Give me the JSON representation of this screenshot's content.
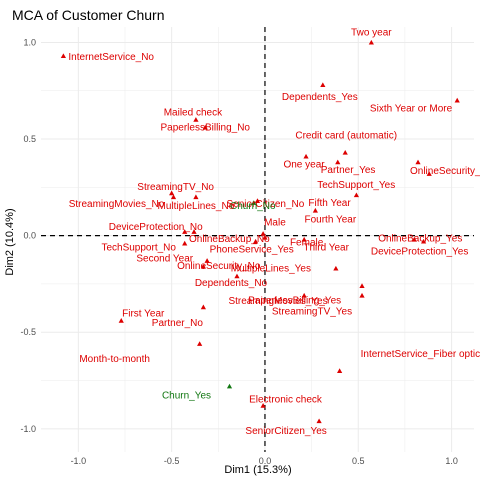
{
  "chart_data": {
    "type": "scatter",
    "title": "MCA of Customer Churn",
    "xlabel": "Dim1 (15.3%)",
    "ylabel": "Dim2 (10.4%)",
    "xlim": [
      -1.2,
      1.12
    ],
    "ylim": [
      -1.12,
      1.08
    ],
    "xticks": [
      -1.0,
      -0.5,
      0.0,
      0.5,
      1.0
    ],
    "yticks": [
      -1.0,
      -0.5,
      0.0,
      0.5,
      1.0
    ],
    "xtick_labels": [
      "-1.0",
      "-0.5",
      "0.0",
      "0.5",
      "1.0"
    ],
    "ytick_labels": [
      "-1.0",
      "-0.5",
      "0.0",
      "0.5",
      "1.0"
    ],
    "grid": true,
    "reference_lines": {
      "x": 0,
      "y": 0,
      "style": "dashed"
    },
    "colors": {
      "variable": "#dd0000",
      "supplementary": "#117711"
    },
    "points": [
      {
        "label": "Two year",
        "x": 0.57,
        "y": 1.0,
        "group": "variable"
      },
      {
        "label": "InternetService_No",
        "x": -1.08,
        "y": 0.93,
        "group": "variable"
      },
      {
        "label": "Dependents_Yes",
        "x": 0.31,
        "y": 0.78,
        "group": "variable"
      },
      {
        "label": "Sixth Year or More",
        "x": 1.03,
        "y": 0.7,
        "group": "variable"
      },
      {
        "label": "Mailed check",
        "x": -0.37,
        "y": 0.6,
        "group": "variable"
      },
      {
        "label": "PaperlessBilling_No",
        "x": -0.32,
        "y": 0.56,
        "group": "variable"
      },
      {
        "label": "Credit card (automatic)",
        "x": 0.43,
        "y": 0.43,
        "group": "variable"
      },
      {
        "label": "OnlineSecurity_Yes",
        "x": 0.82,
        "y": 0.38,
        "group": "variable"
      },
      {
        "label": "One year",
        "x": 0.22,
        "y": 0.41,
        "group": "variable"
      },
      {
        "label": "Partner_Yes",
        "x": 0.39,
        "y": 0.38,
        "group": "variable"
      },
      {
        "label": "Fifth Year",
        "x": 0.49,
        "y": 0.21,
        "group": "variable"
      },
      {
        "label": "TechSupport_Yes",
        "x": 0.88,
        "y": 0.32,
        "group": "variable"
      },
      {
        "label": "StreamingTV_No",
        "x": -0.5,
        "y": 0.22,
        "group": "variable"
      },
      {
        "label": "SeniorCitizen_No",
        "x": -0.04,
        "y": 0.18,
        "group": "variable"
      },
      {
        "label": "Churn_No",
        "x": -0.06,
        "y": 0.17,
        "group": "supplementary"
      },
      {
        "label": "StreamingMovies_No",
        "x": -0.49,
        "y": 0.2,
        "group": "variable"
      },
      {
        "label": "MultipleLines_No",
        "x": -0.37,
        "y": 0.2,
        "group": "variable"
      },
      {
        "label": "Fourth Year",
        "x": 0.27,
        "y": 0.13,
        "group": "variable"
      },
      {
        "label": "DeviceProtection_No",
        "x": -0.43,
        "y": 0.02,
        "group": "variable"
      },
      {
        "label": "OnlineBackup_No",
        "x": -0.38,
        "y": 0.02,
        "group": "variable"
      },
      {
        "label": "Male",
        "x": -0.01,
        "y": 0.01,
        "group": "variable"
      },
      {
        "label": "Female",
        "x": 0.0,
        "y": -0.01,
        "group": "variable"
      },
      {
        "label": "OnlineBackup_Yes",
        "x": 0.8,
        "y": -0.02,
        "group": "variable"
      },
      {
        "label": "DeviceProtection_Yes",
        "x": 0.85,
        "y": -0.03,
        "group": "variable"
      },
      {
        "label": "TechSupport_No",
        "x": -0.43,
        "y": -0.04,
        "group": "variable"
      },
      {
        "label": "PhoneService_Yes",
        "x": -0.05,
        "y": -0.03,
        "group": "variable"
      },
      {
        "label": "Third Year",
        "x": 0.21,
        "y": -0.02,
        "group": "variable"
      },
      {
        "label": "OnlineSecurity_No",
        "x": -0.31,
        "y": -0.13,
        "group": "variable"
      },
      {
        "label": "Second Year",
        "x": -0.33,
        "y": -0.16,
        "group": "variable"
      },
      {
        "label": "MultipleLines_Yes",
        "x": 0.38,
        "y": -0.17,
        "group": "variable"
      },
      {
        "label": "Dependents_No",
        "x": -0.15,
        "y": -0.21,
        "group": "variable"
      },
      {
        "label": "StreamingMovies_Yes",
        "x": 0.52,
        "y": -0.26,
        "group": "variable"
      },
      {
        "label": "PaperlessBilling_Yes",
        "x": 0.21,
        "y": -0.31,
        "group": "variable"
      },
      {
        "label": "First Year",
        "x": -0.77,
        "y": -0.44,
        "group": "variable"
      },
      {
        "label": "Partner_No",
        "x": -0.33,
        "y": -0.37,
        "group": "variable"
      },
      {
        "label": "StreamingTV_Yes",
        "x": 0.52,
        "y": -0.31,
        "group": "variable"
      },
      {
        "label": "Month-to-month",
        "x": -0.35,
        "y": -0.56,
        "group": "variable"
      },
      {
        "label": "InternetService_Fiber optic",
        "x": 0.4,
        "y": -0.7,
        "group": "variable"
      },
      {
        "label": "Churn_Yes",
        "x": -0.19,
        "y": -0.78,
        "group": "supplementary"
      },
      {
        "label": "Electronic check",
        "x": -0.01,
        "y": -0.88,
        "group": "variable"
      },
      {
        "label": "SeniorCitizen_Yes",
        "x": 0.29,
        "y": -0.96,
        "group": "variable"
      }
    ]
  }
}
